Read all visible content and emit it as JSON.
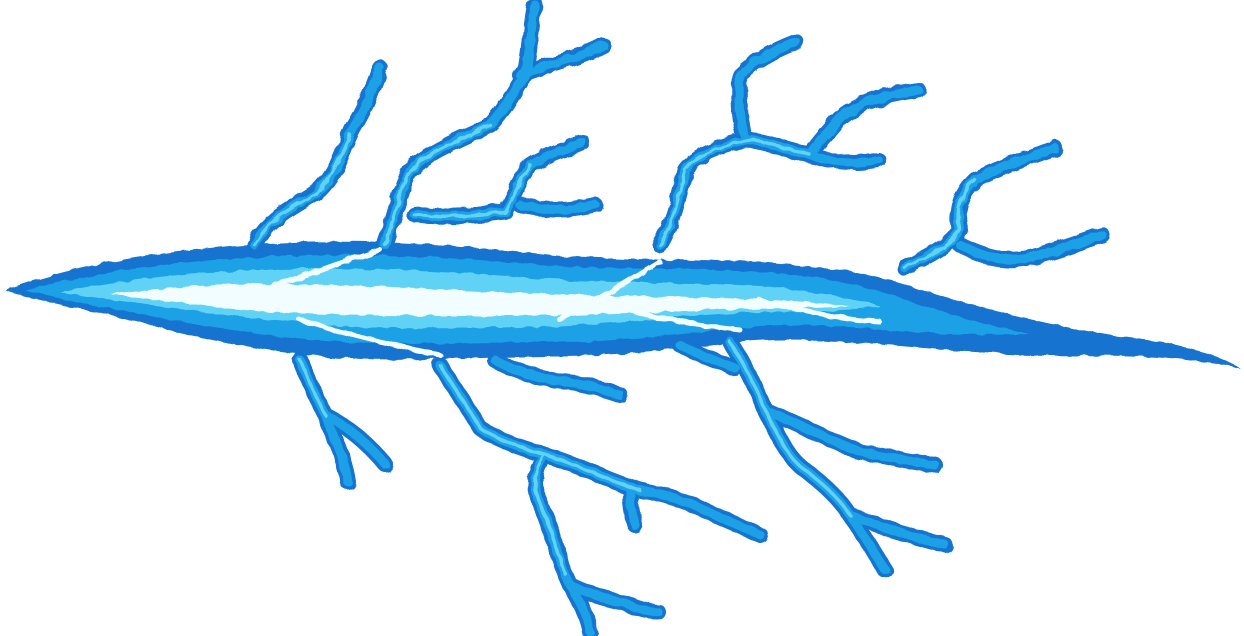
{
  "sprite": {
    "subject": "lightning-bolt",
    "colors": {
      "outer": "#1273d0",
      "mid": "#1ea0e6",
      "inner": "#5fd2f5",
      "core": "#f2fdff",
      "background": "#ffffff"
    }
  }
}
